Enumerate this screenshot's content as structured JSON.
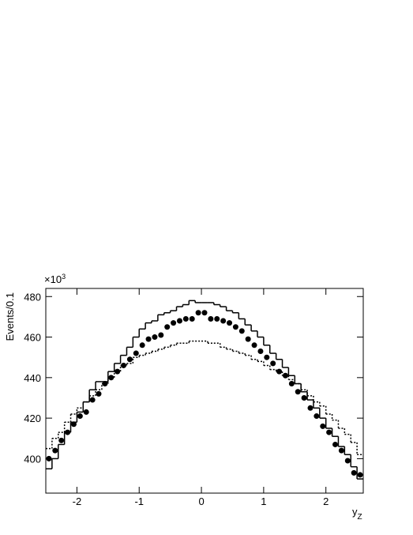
{
  "chart_data": {
    "type": "histogram",
    "y_label": "Events/0.1",
    "x_label": {
      "text": "y",
      "subscript": "Z"
    },
    "y_multiplier": {
      "base": "×10",
      "exponent": "3"
    },
    "bins": [
      -2.5,
      -2.4,
      -2.3,
      -2.2,
      -2.1,
      -2.0,
      -1.9,
      -1.8,
      -1.7,
      -1.6,
      -1.5,
      -1.4,
      -1.3,
      -1.2,
      -1.1,
      -1.0,
      -0.9,
      -0.8,
      -0.7,
      -0.6,
      -0.5,
      -0.4,
      -0.3,
      -0.2,
      -0.1,
      0.0,
      0.1,
      0.2,
      0.3,
      0.4,
      0.5,
      0.6,
      0.7,
      0.8,
      0.9,
      1.0,
      1.1,
      1.2,
      1.3,
      1.4,
      1.5,
      1.6,
      1.7,
      1.8,
      1.9,
      2.0,
      2.1,
      2.2,
      2.3,
      2.4,
      2.5,
      2.6
    ],
    "series": [
      {
        "style": "solid",
        "color": "#000000",
        "values": [
          395,
          400,
          407,
          413,
          418,
          423,
          428,
          434,
          438,
          438,
          443,
          447,
          451,
          455,
          460,
          464,
          467,
          468,
          471,
          472,
          473,
          475,
          476,
          478,
          477,
          477,
          477,
          476,
          475,
          473,
          472,
          469,
          466,
          463,
          460,
          456,
          452,
          449,
          445,
          441,
          437,
          433,
          429,
          425,
          420,
          415,
          411,
          406,
          402,
          396,
          390
        ]
      },
      {
        "style": "dotted",
        "color": "#000000",
        "values": [
          405,
          410,
          413,
          418,
          422,
          425,
          428,
          431,
          434,
          437,
          440,
          443,
          446,
          447,
          450,
          451,
          452,
          453,
          454,
          455,
          456,
          457,
          457,
          458,
          458,
          458,
          457,
          457,
          455,
          454,
          453,
          452,
          451,
          449,
          448,
          446,
          444,
          443,
          441,
          439,
          437,
          434,
          431,
          428,
          426,
          422,
          419,
          415,
          412,
          408,
          402
        ]
      },
      {
        "style": "points",
        "color": "#000000",
        "values": [
          400,
          404,
          409,
          413,
          417,
          421,
          423,
          429,
          432,
          437,
          440,
          443,
          446,
          449,
          452,
          456,
          459,
          460,
          461,
          465,
          467,
          468,
          469,
          469,
          472,
          472,
          469,
          469,
          468,
          467,
          465,
          463,
          459,
          456,
          453,
          450,
          447,
          443,
          441,
          437,
          433,
          430,
          425,
          421,
          416,
          413,
          407,
          404,
          399,
          393,
          392
        ]
      }
    ],
    "xlim": [
      -2.5,
      2.6
    ],
    "ylim": [
      383,
      484
    ],
    "xticks": [
      -2,
      -1,
      0,
      1,
      2
    ],
    "yticks": [
      400,
      420,
      440,
      460,
      480
    ]
  }
}
